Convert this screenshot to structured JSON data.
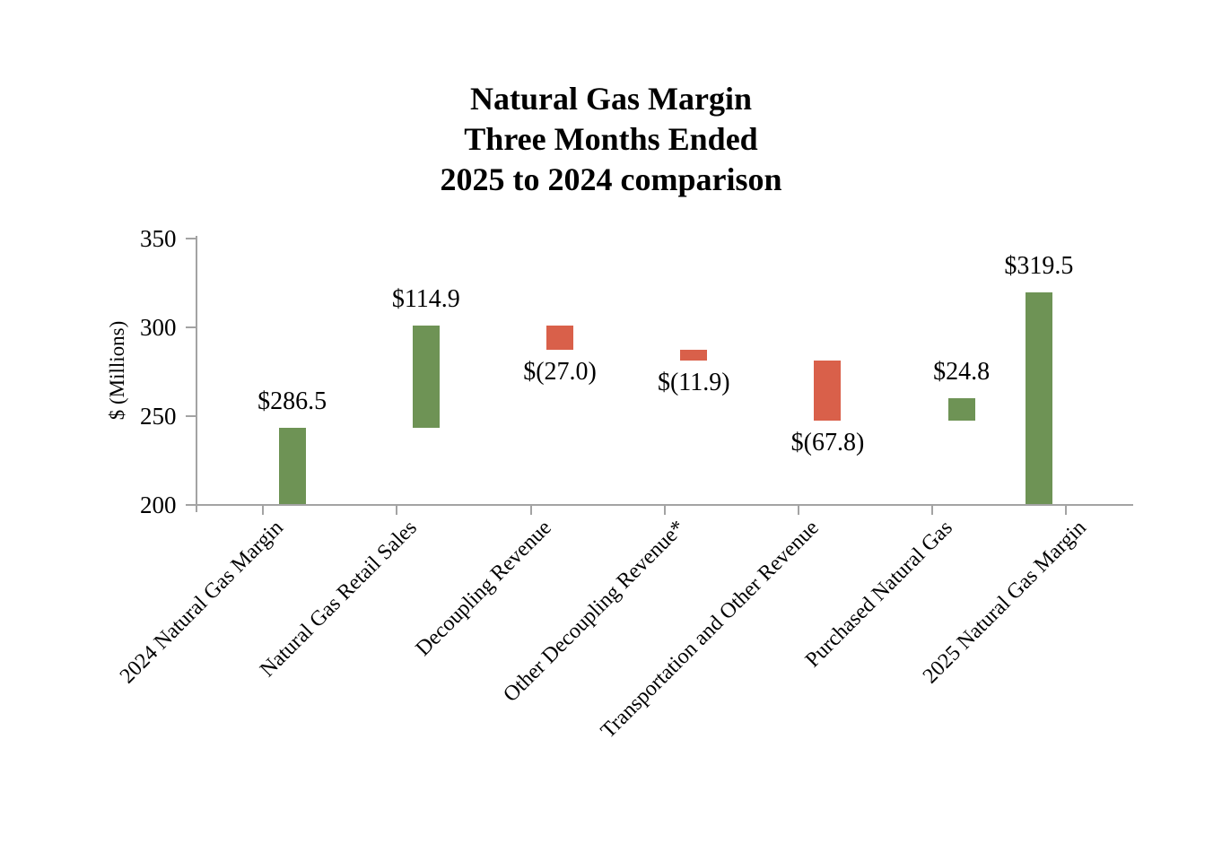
{
  "title": {
    "line1": "Natural Gas Margin",
    "line2": "Three Months Ended",
    "line3": "2025 to 2024 comparison"
  },
  "chart_data": {
    "type": "waterfall",
    "title": "Natural Gas Margin Three Months Ended 2025 to 2024 comparison",
    "ylabel": "$ (Millions)",
    "ylim": [
      200,
      350
    ],
    "yticks": [
      350,
      300,
      250,
      200
    ],
    "grid": false,
    "legend": false,
    "colors": {
      "increase": "#6e9355",
      "decrease": "#d9604a",
      "axis": "#a3a3a3",
      "text": "#000000",
      "background": "#ffffff"
    },
    "categories": [
      "2024 Natural Gas Margin",
      "Natural Gas Retail Sales",
      "Decoupling Revenue",
      "Other Decoupling Revenue*",
      "Transportation and Other Revenue",
      "Purchased Natural Gas",
      "2025 Natural Gas Margin"
    ],
    "bars": [
      {
        "category": "2024 Natural Gas Margin",
        "value": 286.5,
        "label": "$286.5",
        "role": "total",
        "color": "increase",
        "label_position": "above",
        "draw_from": 200.0,
        "draw_to": 243.3
      },
      {
        "category": "Natural Gas Retail Sales",
        "value": 114.9,
        "label": "$114.9",
        "role": "increase",
        "color": "increase",
        "label_position": "above",
        "draw_from": 243.3,
        "draw_to": 300.7
      },
      {
        "category": "Decoupling Revenue",
        "value": -27.0,
        "label": "$(27.0)",
        "role": "decrease",
        "color": "decrease",
        "label_position": "below",
        "draw_from": 300.7,
        "draw_to": 287.2
      },
      {
        "category": "Other Decoupling Revenue*",
        "value": -11.9,
        "label": "$(11.9)",
        "role": "decrease",
        "color": "decrease",
        "label_position": "below",
        "draw_from": 287.2,
        "draw_to": 281.3
      },
      {
        "category": "Transportation and Other Revenue",
        "value": -67.8,
        "label": "$(67.8)",
        "role": "decrease",
        "color": "decrease",
        "label_position": "below",
        "draw_from": 281.3,
        "draw_to": 247.4
      },
      {
        "category": "Purchased Natural Gas",
        "value": 24.8,
        "label": "$24.8",
        "role": "increase",
        "color": "increase",
        "label_position": "above",
        "draw_from": 247.4,
        "draw_to": 259.8
      },
      {
        "category": "2025 Natural Gas Margin",
        "value": 319.5,
        "label": "$319.5",
        "role": "total",
        "color": "increase",
        "label_position": "above",
        "draw_from": 200.0,
        "draw_to": 319.5
      }
    ]
  }
}
